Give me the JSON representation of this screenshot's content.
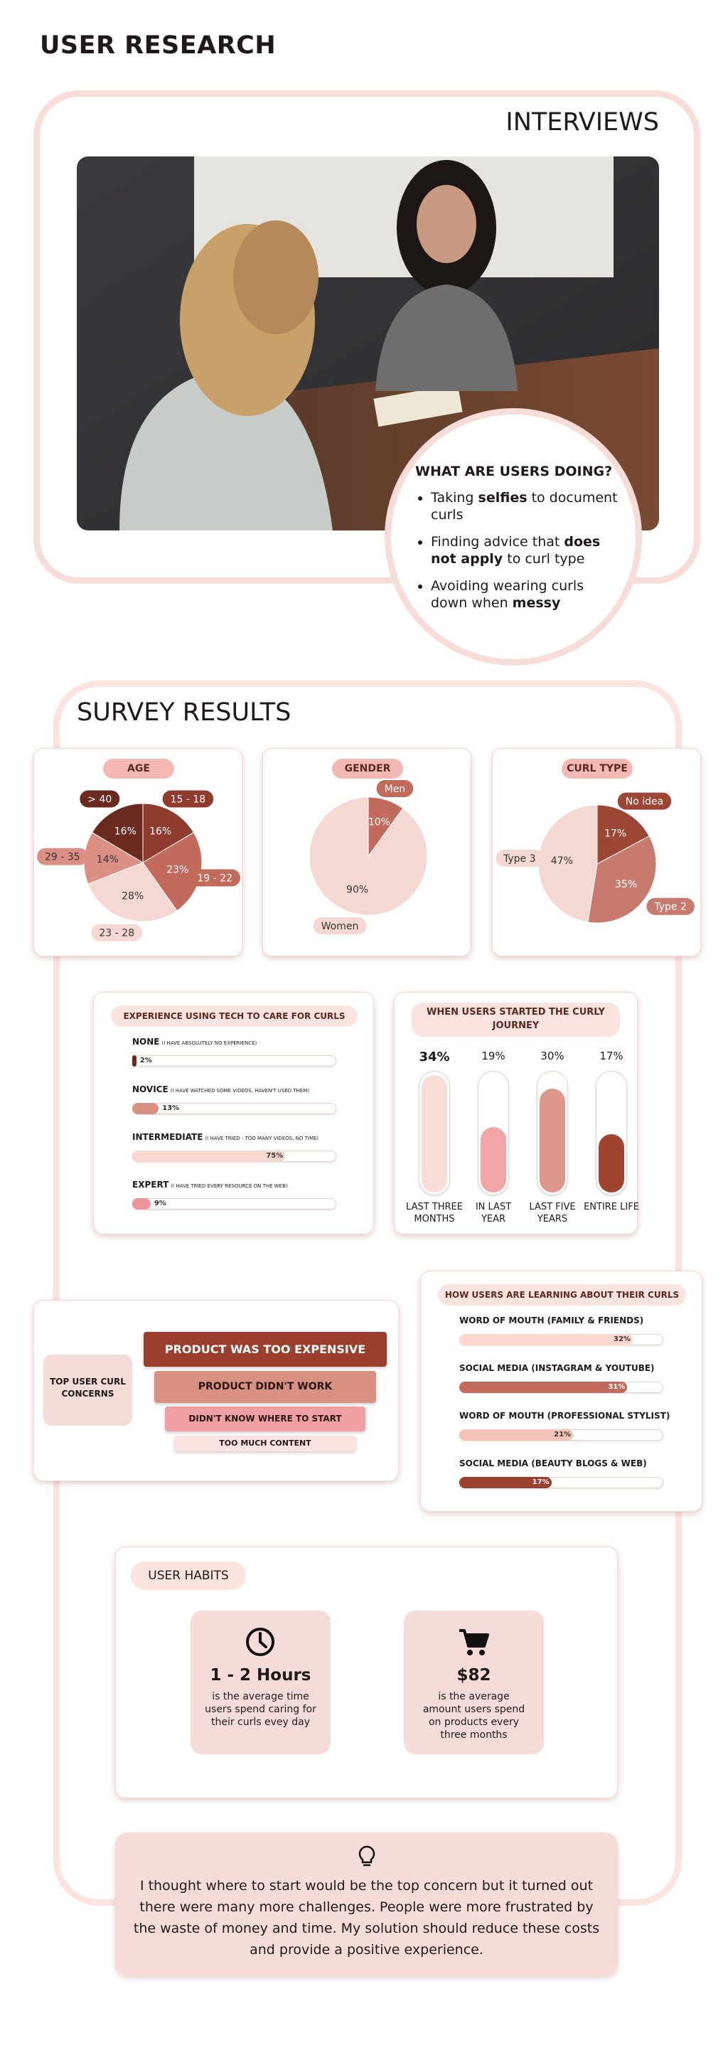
{
  "header": {
    "title": "USER RESEARCH"
  },
  "interviews": {
    "title": "INTERVIEWS",
    "callout": {
      "title": "WHAT ARE USERS DOING?",
      "items": [
        [
          "Taking ",
          "selfies",
          " to document curls"
        ],
        [
          "Finding advice that ",
          "does not apply",
          " to curl type"
        ],
        [
          "Avoiding wearing curls down when ",
          "messy"
        ]
      ]
    }
  },
  "survey": {
    "title": "SURVEY RESULTS",
    "age": {
      "type": "pie",
      "title": "AGE",
      "categories": [
        "15 - 18",
        "19 - 22",
        "23 - 28",
        "29 - 35",
        "> 40"
      ],
      "values": [
        16,
        23,
        28,
        14,
        16
      ],
      "value_labels": [
        "16%",
        "23%",
        "28%",
        "14%",
        "16%"
      ],
      "colors": [
        "#8f3b2d",
        "#c26a5c",
        "#f6d8d3",
        "#dc9085",
        "#6a2a1f"
      ]
    },
    "gender": {
      "type": "pie",
      "title": "GENDER",
      "categories": [
        "Men",
        "Women"
      ],
      "values": [
        10,
        90
      ],
      "value_labels": [
        "10%",
        "90%"
      ],
      "colors": [
        "#c26a5c",
        "#f6d8d3"
      ]
    },
    "curl_type": {
      "type": "pie",
      "title": "CURL TYPE",
      "categories": [
        "No idea",
        "Type 2",
        "Type 3"
      ],
      "values": [
        17,
        35,
        47
      ],
      "value_labels": [
        "17%",
        "35%",
        "47%"
      ],
      "colors": [
        "#9c4636",
        "#c97a6e",
        "#f6d8d3"
      ]
    },
    "experience": {
      "type": "bar",
      "title": "EXPERIENCE USING TECH TO CARE FOR CURLS",
      "categories": [
        "NONE",
        "NOVICE",
        "INTERMEDIATE",
        "EXPERT"
      ],
      "notes": [
        "(I HAVE ABSOLUTELY NO EXPERIENCE)",
        "(I HAVE WATCHED SOME VIDEOS, HAVEN'T USED THEM)",
        "(I HAVE TRIED - TOO MANY VIDEOS, NO TIME)",
        "(I HAVE TRIED EVERY RESOURCE ON THE WEB)"
      ],
      "values": [
        2,
        13,
        75,
        9
      ],
      "value_labels": [
        "2%",
        "13%",
        "75%",
        "9%"
      ],
      "colors": [
        "#6a2a1f",
        "#d99184",
        "#f6d8cf",
        "#ec959b"
      ]
    },
    "started": {
      "type": "column",
      "title": "WHEN USERS STARTED THE CURLY JOURNEY",
      "categories": [
        "LAST THREE MONTHS",
        "IN LAST YEAR",
        "LAST FIVE YEARS",
        "ENTIRE LIFE"
      ],
      "values": [
        34,
        19,
        30,
        17
      ],
      "value_labels": [
        "34%",
        "19%",
        "30%",
        "17%"
      ],
      "colors": [
        "#f7dcd7",
        "#f0a6a6",
        "#db978b",
        "#a0432f"
      ]
    },
    "concerns": {
      "title": "TOP USER CURL CONCERNS",
      "items": [
        "PRODUCT WAS TOO EXPENSIVE",
        "PRODUCT DIDN'T WORK",
        "DIDN'T KNOW WHERE TO START",
        "TOO MUCH CONTENT"
      ]
    },
    "learning": {
      "type": "bar",
      "title": "HOW USERS ARE LEARNING ABOUT THEIR CURLS",
      "categories": [
        "WORD OF MOUTH (FAMILY & FRIENDS)",
        "SOCIAL MEDIA (INSTAGRAM & YOUTUBE)",
        "WORD OF MOUTH (PROFESSIONAL STYLIST)",
        "SOCIAL MEDIA (BEAUTY BLOGS & WEB)"
      ],
      "values": [
        32,
        31,
        21,
        17
      ],
      "value_labels": [
        "32%",
        "31%",
        "21%",
        "17%"
      ],
      "colors": [
        "#fbd7d0",
        "#c26a5c",
        "#f5c3b8",
        "#9c3f2e"
      ]
    }
  },
  "habits": {
    "title": "USER HABITS",
    "stats": [
      {
        "value": "1 - 2 Hours",
        "text": "is the average time users spend caring for their curls evey day"
      },
      {
        "value": "$82",
        "text": "is the average amount users spend on products every three months"
      }
    ]
  },
  "insight": {
    "text": "I thought where to start would be the top concern but it turned out there were many more challenges. People were more frustrated by the waste of money and time. My solution should reduce these costs and provide a positive experience."
  }
}
